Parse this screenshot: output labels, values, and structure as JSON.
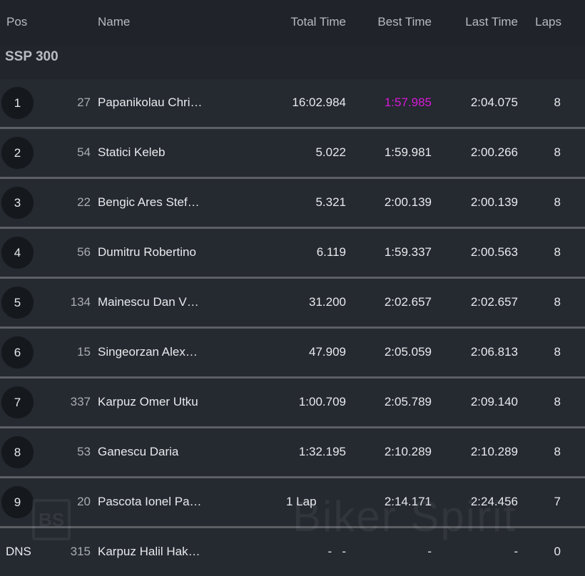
{
  "header": {
    "pos": "Pos",
    "name": "Name",
    "total_time": "Total Time",
    "best_time": "Best Time",
    "last_time": "Last Time",
    "laps": "Laps"
  },
  "category": "SSP 300",
  "fastest_color": "#d61ad6",
  "watermark": {
    "logo": "BS",
    "text": "Biker Spirit"
  },
  "rows": [
    {
      "pos": "1",
      "num": "27",
      "name": "Papanikolau Chri…",
      "total": "16:02.984",
      "best": "1:57.985",
      "last": "2:04.075",
      "laps": "8"
    },
    {
      "pos": "2",
      "num": "54",
      "name": "Statici Keleb",
      "total": "5.022",
      "best": "1:59.981",
      "last": "2:00.266",
      "laps": "8"
    },
    {
      "pos": "3",
      "num": "22",
      "name": "Bengic Ares Stef…",
      "total": "5.321",
      "best": "2:00.139",
      "last": "2:00.139",
      "laps": "8"
    },
    {
      "pos": "4",
      "num": "56",
      "name": "Dumitru Robertino",
      "total": "6.119",
      "best": "1:59.337",
      "last": "2:00.563",
      "laps": "8"
    },
    {
      "pos": "5",
      "num": "134",
      "name": "Mainescu Dan V…",
      "total": "31.200",
      "best": "2:02.657",
      "last": "2:02.657",
      "laps": "8"
    },
    {
      "pos": "6",
      "num": "15",
      "name": "Singeorzan Alex…",
      "total": "47.909",
      "best": "2:05.059",
      "last": "2:06.813",
      "laps": "8"
    },
    {
      "pos": "7",
      "num": "337",
      "name": "Karpuz Omer Utku",
      "total": "1:00.709",
      "best": "2:05.789",
      "last": "2:09.140",
      "laps": "8"
    },
    {
      "pos": "8",
      "num": "53",
      "name": "Ganescu Daria",
      "total": "1:32.195",
      "best": "2:10.289",
      "last": "2:10.289",
      "laps": "8"
    },
    {
      "pos": "9",
      "num": "20",
      "name": "Pascota Ionel Pa…",
      "total": "1 Lap",
      "best": "2:14.171",
      "last": "2:24.456",
      "laps": "7"
    },
    {
      "pos": "DNS",
      "num": "315",
      "name": "Karpuz Halil Hak…",
      "total": "-   -",
      "best": "-",
      "last": "-",
      "laps": "0"
    }
  ]
}
